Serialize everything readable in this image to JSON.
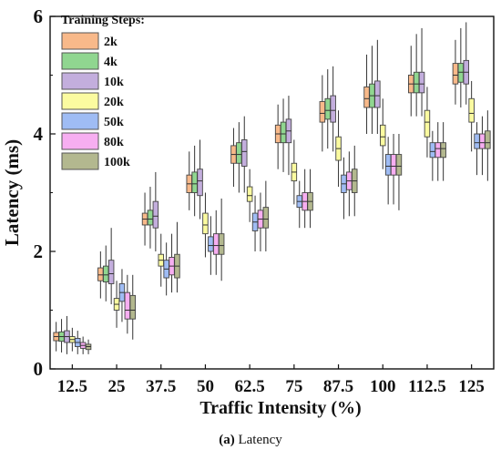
{
  "caption": {
    "label": "(a)",
    "text": " Latency"
  },
  "chart_data": {
    "type": "box",
    "xlabel": "Traffic Intensity (%)",
    "ylabel": "Latency (ms)",
    "ylim": [
      0,
      6
    ],
    "yticks": [
      0,
      2,
      4,
      6
    ],
    "categories": [
      "12.5",
      "25",
      "37.5",
      "50",
      "62.5",
      "75",
      "87.5",
      "100",
      "112.5",
      "125"
    ],
    "legend": {
      "title": "Training Steps:",
      "placement": "top-left"
    },
    "series": [
      {
        "name": "2k",
        "color": "#f8b98a",
        "median": [
          0.55,
          1.6,
          2.55,
          3.15,
          3.65,
          4.0,
          4.35,
          4.6,
          4.85,
          5.0
        ],
        "q1": [
          0.48,
          1.5,
          2.45,
          3.0,
          3.5,
          3.85,
          4.2,
          4.45,
          4.7,
          4.85
        ],
        "q3": [
          0.62,
          1.72,
          2.65,
          3.3,
          3.8,
          4.15,
          4.55,
          4.8,
          5.0,
          5.2
        ],
        "min": [
          0.3,
          1.2,
          2.1,
          2.7,
          3.1,
          3.4,
          3.7,
          4.0,
          4.3,
          4.5
        ],
        "max": [
          0.8,
          2.0,
          3.0,
          3.7,
          4.1,
          4.5,
          5.0,
          5.35,
          5.5,
          5.6
        ]
      },
      {
        "name": "4k",
        "color": "#90d690",
        "median": [
          0.55,
          1.6,
          2.55,
          3.15,
          3.65,
          4.0,
          4.4,
          4.65,
          4.85,
          5.05
        ],
        "q1": [
          0.47,
          1.48,
          2.45,
          3.0,
          3.5,
          3.85,
          4.25,
          4.45,
          4.7,
          4.88
        ],
        "q3": [
          0.63,
          1.75,
          2.7,
          3.35,
          3.85,
          4.2,
          4.6,
          4.85,
          5.05,
          5.2
        ],
        "min": [
          0.28,
          1.15,
          2.05,
          2.6,
          3.0,
          3.35,
          3.75,
          4.0,
          4.3,
          4.45
        ],
        "max": [
          0.85,
          2.1,
          3.1,
          3.8,
          4.2,
          4.6,
          5.1,
          5.5,
          5.7,
          5.8
        ]
      },
      {
        "name": "10k",
        "color": "#c3aedd",
        "median": [
          0.55,
          1.62,
          2.6,
          3.2,
          3.7,
          4.05,
          4.4,
          4.65,
          4.85,
          5.05
        ],
        "q1": [
          0.45,
          1.45,
          2.4,
          2.95,
          3.45,
          3.85,
          4.2,
          4.45,
          4.7,
          4.85
        ],
        "q3": [
          0.65,
          1.85,
          2.85,
          3.4,
          3.9,
          4.25,
          4.65,
          4.9,
          5.05,
          5.25
        ],
        "min": [
          0.25,
          1.1,
          2.0,
          2.55,
          3.0,
          3.3,
          3.7,
          4.0,
          4.3,
          4.5
        ],
        "max": [
          0.9,
          2.4,
          3.35,
          3.9,
          4.3,
          4.65,
          5.15,
          5.6,
          5.8,
          5.9
        ]
      },
      {
        "name": "20k",
        "color": "#fbfba0",
        "median": [
          0.5,
          1.1,
          1.85,
          2.45,
          2.95,
          3.35,
          3.75,
          3.95,
          4.2,
          4.35
        ],
        "q1": [
          0.45,
          1.0,
          1.75,
          2.3,
          2.85,
          3.2,
          3.55,
          3.8,
          3.95,
          4.2
        ],
        "q3": [
          0.55,
          1.2,
          1.95,
          2.65,
          3.1,
          3.5,
          3.95,
          4.15,
          4.4,
          4.6
        ],
        "min": [
          0.3,
          0.7,
          1.4,
          1.9,
          2.5,
          2.8,
          3.1,
          3.4,
          3.6,
          3.7
        ],
        "max": [
          0.7,
          1.5,
          2.3,
          3.0,
          3.4,
          3.9,
          4.4,
          4.6,
          4.8,
          4.9
        ]
      },
      {
        "name": "50k",
        "color": "#9fbcf4",
        "median": [
          0.45,
          1.3,
          1.7,
          2.1,
          2.5,
          2.85,
          3.15,
          3.45,
          3.7,
          3.85
        ],
        "q1": [
          0.38,
          1.15,
          1.55,
          2.0,
          2.35,
          2.75,
          3.0,
          3.3,
          3.6,
          3.75
        ],
        "q3": [
          0.52,
          1.45,
          1.85,
          2.25,
          2.65,
          2.95,
          3.3,
          3.65,
          3.85,
          4.0
        ],
        "min": [
          0.25,
          0.8,
          1.25,
          1.6,
          2.0,
          2.4,
          2.55,
          2.8,
          3.2,
          3.3
        ],
        "max": [
          0.65,
          1.7,
          2.15,
          2.6,
          2.95,
          3.2,
          3.6,
          3.95,
          4.05,
          4.2
        ]
      },
      {
        "name": "80k",
        "color": "#f7aef1",
        "median": [
          0.4,
          1.0,
          1.75,
          2.1,
          2.55,
          2.85,
          3.2,
          3.45,
          3.75,
          3.85
        ],
        "q1": [
          0.35,
          0.85,
          1.6,
          1.95,
          2.4,
          2.7,
          3.05,
          3.3,
          3.6,
          3.75
        ],
        "q3": [
          0.45,
          1.3,
          1.9,
          2.3,
          2.7,
          3.0,
          3.35,
          3.65,
          3.85,
          4.0
        ],
        "min": [
          0.25,
          0.6,
          1.3,
          1.6,
          2.0,
          2.4,
          2.6,
          2.8,
          3.2,
          3.3
        ],
        "max": [
          0.55,
          1.6,
          2.3,
          2.7,
          3.0,
          3.4,
          3.7,
          4.0,
          4.2,
          4.3
        ]
      },
      {
        "name": "100k",
        "color": "#b3b88f",
        "median": [
          0.38,
          1.0,
          1.75,
          2.1,
          2.55,
          2.85,
          3.2,
          3.45,
          3.75,
          3.85
        ],
        "q1": [
          0.33,
          0.85,
          1.55,
          1.95,
          2.4,
          2.7,
          3.0,
          3.3,
          3.6,
          3.75
        ],
        "q3": [
          0.42,
          1.25,
          1.95,
          2.3,
          2.75,
          3.0,
          3.4,
          3.65,
          3.85,
          4.05
        ],
        "min": [
          0.25,
          0.5,
          1.3,
          1.5,
          2.0,
          2.4,
          2.6,
          2.7,
          3.2,
          3.2
        ],
        "max": [
          0.5,
          1.6,
          2.5,
          2.9,
          3.2,
          3.4,
          3.8,
          4.0,
          4.2,
          4.4
        ]
      }
    ],
    "grid": false
  }
}
